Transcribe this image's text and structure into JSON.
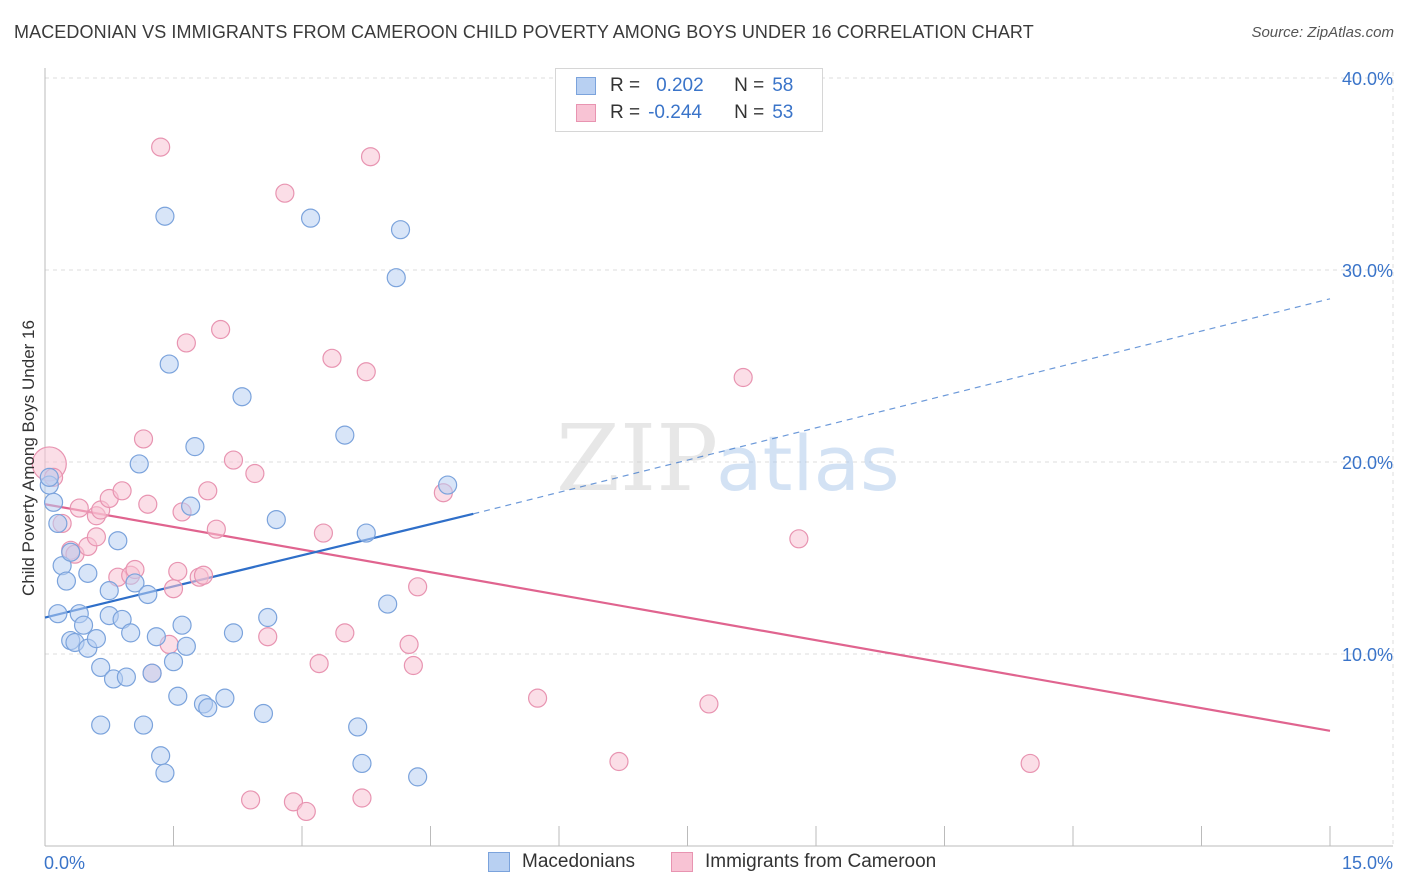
{
  "header": {
    "title": "MACEDONIAN VS IMMIGRANTS FROM CAMEROON CHILD POVERTY AMONG BOYS UNDER 16 CORRELATION CHART",
    "source": "Source: ZipAtlas.com"
  },
  "legend": {
    "rows": [
      {
        "r_label": "R =",
        "r_value": "0.202",
        "n_label": "N =",
        "n_value": "58"
      },
      {
        "r_label": "R =",
        "r_value": "-0.244",
        "n_label": "N =",
        "n_value": "53"
      }
    ]
  },
  "bottom_legend": {
    "items": [
      "Macedonians",
      "Immigrants from Cameroon"
    ]
  },
  "watermark": {
    "part1": "ZIP",
    "part2": "atlas"
  },
  "colors": {
    "blue_fill": "#b8d0f2",
    "blue_stroke": "#7ba3dc",
    "blue_line": "#2f6fc9",
    "pink_fill": "#f8c3d4",
    "pink_stroke": "#e894b1",
    "pink_line": "#e0648f",
    "tick_label": "#3a74c9",
    "grid": "#dcdcdc"
  },
  "chart_data": {
    "type": "scatter",
    "title": "MACEDONIAN VS IMMIGRANTS FROM CAMEROON CHILD POVERTY AMONG BOYS UNDER 16 CORRELATION CHART",
    "xlabel": "",
    "ylabel": "Child Poverty Among Boys Under 16",
    "xlim": [
      0,
      15
    ],
    "ylim": [
      0,
      40
    ],
    "x_tick_labels": [
      "0.0%",
      "15.0%"
    ],
    "y_ticks": [
      10,
      20,
      30,
      40
    ],
    "y_tick_labels": [
      "10.0%",
      "20.0%",
      "30.0%",
      "40.0%"
    ],
    "grid": true,
    "legend_placement": "top-center",
    "series": [
      {
        "name": "Macedonians",
        "r": 0.202,
        "n": 58,
        "points": [
          [
            0.05,
            18.8
          ],
          [
            0.1,
            17.9
          ],
          [
            0.15,
            16.8
          ],
          [
            0.15,
            12.1
          ],
          [
            0.2,
            14.6
          ],
          [
            0.25,
            13.8
          ],
          [
            0.3,
            10.7
          ],
          [
            0.3,
            15.3
          ],
          [
            0.35,
            10.6
          ],
          [
            0.4,
            12.1
          ],
          [
            0.45,
            11.5
          ],
          [
            0.5,
            10.3
          ],
          [
            0.5,
            14.2
          ],
          [
            0.6,
            10.8
          ],
          [
            0.65,
            9.3
          ],
          [
            0.65,
            6.3
          ],
          [
            0.75,
            13.3
          ],
          [
            0.75,
            12.0
          ],
          [
            0.8,
            8.7
          ],
          [
            0.85,
            15.9
          ],
          [
            0.9,
            11.8
          ],
          [
            0.95,
            8.8
          ],
          [
            1.0,
            11.1
          ],
          [
            1.05,
            13.7
          ],
          [
            1.1,
            19.9
          ],
          [
            1.15,
            6.3
          ],
          [
            1.2,
            13.1
          ],
          [
            1.25,
            9.0
          ],
          [
            1.3,
            10.9
          ],
          [
            1.35,
            4.7
          ],
          [
            1.4,
            3.8
          ],
          [
            1.5,
            9.6
          ],
          [
            1.4,
            32.8
          ],
          [
            1.45,
            25.1
          ],
          [
            1.55,
            7.8
          ],
          [
            1.6,
            11.5
          ],
          [
            1.65,
            10.4
          ],
          [
            1.7,
            17.7
          ],
          [
            1.75,
            20.8
          ],
          [
            1.85,
            7.4
          ],
          [
            1.9,
            7.2
          ],
          [
            2.1,
            7.7
          ],
          [
            2.2,
            11.1
          ],
          [
            2.3,
            23.4
          ],
          [
            2.55,
            6.9
          ],
          [
            2.6,
            11.9
          ],
          [
            2.7,
            17.0
          ],
          [
            3.1,
            32.7
          ],
          [
            3.5,
            21.4
          ],
          [
            3.65,
            6.2
          ],
          [
            3.7,
            4.3
          ],
          [
            3.75,
            16.3
          ],
          [
            4.0,
            12.6
          ],
          [
            4.1,
            29.6
          ],
          [
            4.15,
            32.1
          ],
          [
            4.35,
            3.6
          ],
          [
            4.7,
            18.8
          ],
          [
            0.05,
            19.2
          ]
        ],
        "trend": {
          "x": [
            0,
            5
          ],
          "y": [
            11.9,
            17.3
          ],
          "dashed_to": [
            15,
            28.5
          ]
        }
      },
      {
        "name": "Immigrants from Cameroon",
        "r": -0.244,
        "n": 53,
        "points": [
          [
            0.05,
            19.9
          ],
          [
            0.1,
            19.2
          ],
          [
            0.2,
            16.8
          ],
          [
            0.3,
            15.4
          ],
          [
            0.35,
            15.2
          ],
          [
            0.4,
            17.6
          ],
          [
            0.5,
            15.6
          ],
          [
            0.6,
            16.1
          ],
          [
            0.6,
            17.2
          ],
          [
            0.65,
            17.5
          ],
          [
            0.75,
            18.1
          ],
          [
            0.85,
            14.0
          ],
          [
            0.9,
            18.5
          ],
          [
            1.0,
            14.1
          ],
          [
            1.05,
            14.4
          ],
          [
            1.15,
            21.2
          ],
          [
            1.2,
            17.8
          ],
          [
            1.25,
            9.0
          ],
          [
            1.35,
            36.4
          ],
          [
            1.45,
            10.5
          ],
          [
            1.5,
            13.4
          ],
          [
            1.55,
            14.3
          ],
          [
            1.6,
            17.4
          ],
          [
            1.65,
            26.2
          ],
          [
            1.8,
            14.0
          ],
          [
            1.85,
            14.1
          ],
          [
            1.9,
            18.5
          ],
          [
            2.0,
            16.5
          ],
          [
            2.05,
            26.9
          ],
          [
            2.2,
            20.1
          ],
          [
            2.4,
            2.4
          ],
          [
            2.45,
            19.4
          ],
          [
            2.6,
            10.9
          ],
          [
            2.8,
            34.0
          ],
          [
            2.9,
            2.3
          ],
          [
            3.05,
            1.8
          ],
          [
            3.2,
            9.5
          ],
          [
            3.25,
            16.3
          ],
          [
            3.35,
            25.4
          ],
          [
            3.5,
            11.1
          ],
          [
            3.7,
            2.5
          ],
          [
            3.75,
            24.7
          ],
          [
            3.8,
            35.9
          ],
          [
            4.25,
            10.5
          ],
          [
            4.3,
            9.4
          ],
          [
            4.35,
            13.5
          ],
          [
            4.65,
            18.4
          ],
          [
            5.75,
            7.7
          ],
          [
            6.7,
            4.4
          ],
          [
            7.75,
            7.4
          ],
          [
            8.15,
            24.4
          ],
          [
            8.8,
            16.0
          ],
          [
            11.5,
            4.3
          ]
        ],
        "trend": {
          "x": [
            0,
            15
          ],
          "y": [
            17.8,
            6.0
          ]
        }
      }
    ]
  }
}
